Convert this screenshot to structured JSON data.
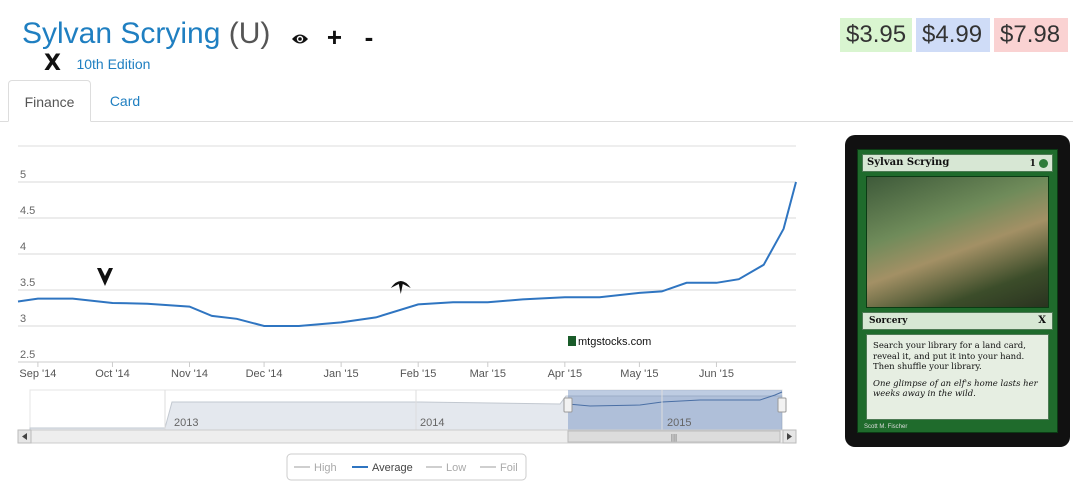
{
  "header": {
    "card_name": "Sylvan Scrying",
    "rarity": "(U)",
    "icons": [
      "eye-icon",
      "plus-icon",
      "minus-icon"
    ],
    "set_icon": "X",
    "set_name": "10th Edition"
  },
  "prices": {
    "low": "$3.95",
    "mid": "$4.99",
    "high": "$7.98"
  },
  "tabs": [
    {
      "label": "Finance"
    },
    {
      "label": "Card"
    }
  ],
  "chart_data": {
    "type": "line",
    "y_ticks": [
      "2.5",
      "3",
      "3.5",
      "4",
      "4.5",
      "5"
    ],
    "ylim": [
      2.5,
      5.5
    ],
    "x_ticks": [
      "Sep '14",
      "Oct '14",
      "Nov '14",
      "Dec '14",
      "Jan '15",
      "Feb '15",
      "Mar '15",
      "Apr '15",
      "May '15",
      "Jun '15"
    ],
    "x": [
      "2014-08-24",
      "2014-09-01",
      "2014-09-15",
      "2014-10-01",
      "2014-10-15",
      "2014-11-01",
      "2014-11-10",
      "2014-11-20",
      "2014-12-01",
      "2014-12-15",
      "2015-01-01",
      "2015-01-15",
      "2015-02-01",
      "2015-02-15",
      "2015-03-01",
      "2015-03-15",
      "2015-04-01",
      "2015-04-15",
      "2015-05-01",
      "2015-05-10",
      "2015-05-20",
      "2015-06-01",
      "2015-06-10",
      "2015-06-20",
      "2015-06-28",
      "2015-07-03"
    ],
    "series": [
      {
        "name": "Average",
        "color": "#2f75c1",
        "values": [
          3.34,
          3.38,
          3.38,
          3.32,
          3.31,
          3.27,
          3.14,
          3.1,
          3.0,
          3.0,
          3.05,
          3.12,
          3.3,
          3.33,
          3.33,
          3.37,
          3.4,
          3.4,
          3.46,
          3.48,
          3.6,
          3.6,
          3.65,
          3.85,
          4.35,
          5.0
        ]
      }
    ],
    "legend": [
      "High",
      "Average",
      "Low",
      "Foil"
    ],
    "legend_position": "bottom-center",
    "grid": true,
    "navigator": {
      "labels": [
        "2013",
        "2014",
        "2015"
      ]
    },
    "watermark": "mtgstocks.com"
  },
  "card_image": {
    "title": "Sylvan Scrying",
    "cost": "1",
    "type_line": "Sorcery",
    "rules_text": "Search your library for a land card, reveal it, and put it into your hand. Then shuffle your library.",
    "flavor_text": "One glimpse of an elf's home lasts her weeks away in the wild.",
    "artist": "Scott M. Fischer"
  }
}
